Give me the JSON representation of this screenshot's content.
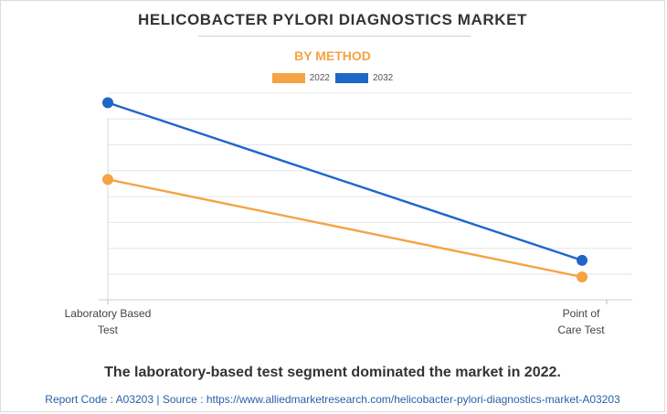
{
  "header": {
    "title": "HELICOBACTER PYLORI DIAGNOSTICS MARKET",
    "subtitle": "BY METHOD"
  },
  "chart_data": {
    "type": "line",
    "categories": [
      "Laboratory Based Test",
      "Point of Care Test"
    ],
    "category_lines": [
      [
        "Laboratory Based",
        "Test"
      ],
      [
        "Point of",
        "Care Test"
      ]
    ],
    "series": [
      {
        "name": "2022",
        "color": "#f5a343",
        "values": [
          0.58,
          0.11
        ]
      },
      {
        "name": "2032",
        "color": "#1f66c9",
        "values": [
          0.95,
          0.19
        ]
      }
    ],
    "ylim": [
      0,
      1
    ],
    "yticks_shown": false,
    "grid": true,
    "legend": "top-center"
  },
  "caption": "The laboratory-based test segment dominated the market in 2022.",
  "footer": "Report Code : A03203  |  Source : https://www.alliedmarketresearch.com/helicobacter-pylori-diagnostics-market-A03203"
}
